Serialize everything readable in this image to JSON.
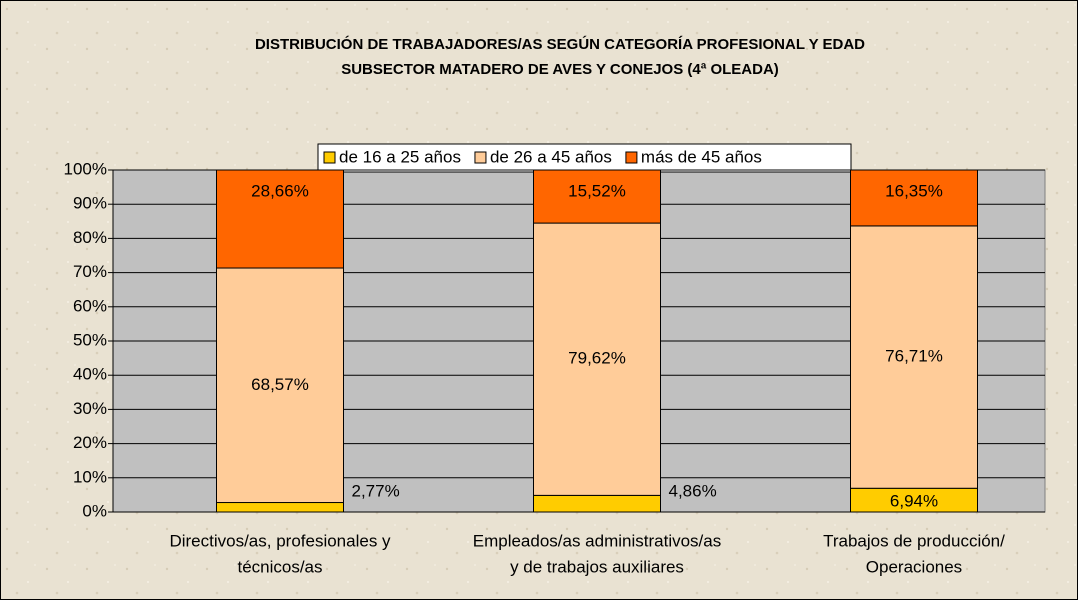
{
  "chart_data": {
    "type": "stacked_bar",
    "title": [
      "DISTRIBUCIÓN DE TRABAJADORES/AS SEGÚN CATEGORÍA PROFESIONAL Y EDAD",
      "SUBSECTOR MATADERO DE AVES Y CONEJOS (4ª OLEADA)"
    ],
    "categories": [
      [
        "Directivos/as, profesionales y",
        "técnicos/as"
      ],
      [
        "Empleados/as administrativos/as",
        "y de trabajos auxiliares"
      ],
      [
        "Trabajos de producción/",
        "Operaciones"
      ]
    ],
    "series": [
      {
        "name": "de 16 a 25 años",
        "color": "#ffcc00",
        "values": [
          2.77,
          4.86,
          6.94
        ],
        "value_labels": [
          "2,77%",
          "4,86%",
          "6,94%"
        ]
      },
      {
        "name": "de 26 a 45 años",
        "color": "#ffcc99",
        "values": [
          68.57,
          79.62,
          76.71
        ],
        "value_labels": [
          "68,57%",
          "79,62%",
          "76,71%"
        ]
      },
      {
        "name": "más de 45 años",
        "color": "#ff6600",
        "values": [
          28.66,
          15.52,
          16.35
        ],
        "value_labels": [
          "28,66%",
          "15,52%",
          "16,35%"
        ]
      }
    ],
    "ylim": [
      0,
      100
    ],
    "yticks": [
      {
        "value": 0,
        "label": "0%"
      },
      {
        "value": 10,
        "label": "10%"
      },
      {
        "value": 20,
        "label": "20%"
      },
      {
        "value": 30,
        "label": "30%"
      },
      {
        "value": 40,
        "label": "40%"
      },
      {
        "value": 50,
        "label": "50%"
      },
      {
        "value": 60,
        "label": "60%"
      },
      {
        "value": 70,
        "label": "70%"
      },
      {
        "value": 80,
        "label": "80%"
      },
      {
        "value": 90,
        "label": "90%"
      },
      {
        "value": 100,
        "label": "100%"
      }
    ],
    "grid": true,
    "legend": "top"
  }
}
